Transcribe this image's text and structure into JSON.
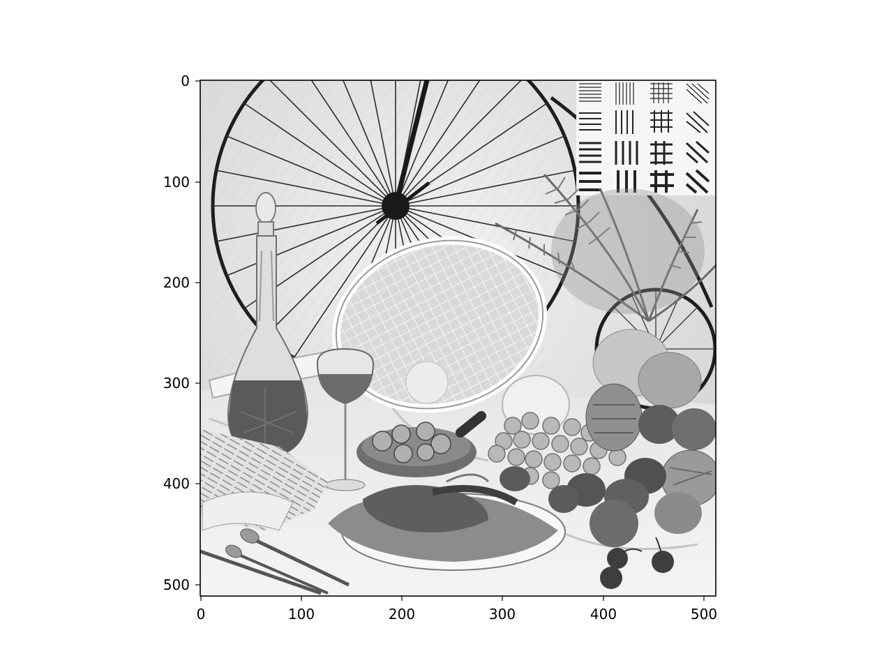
{
  "figure": {
    "image_description": "grayscale still-life test image: penny-farthing bicycle wheels, tennis racket, glass decanter and wine glass, snails dish, lobster on plate, grapes, fruits, cherries, newspaper, cutlery, fern, resolution test patterns",
    "image_colormap": "gray",
    "x_axis": {
      "ticks": [
        "0",
        "100",
        "200",
        "300",
        "400",
        "500"
      ],
      "range": [
        0,
        511
      ]
    },
    "y_axis": {
      "ticks": [
        "0",
        "100",
        "200",
        "300",
        "400",
        "500"
      ],
      "range": [
        0,
        511
      ],
      "inverted": true
    }
  }
}
